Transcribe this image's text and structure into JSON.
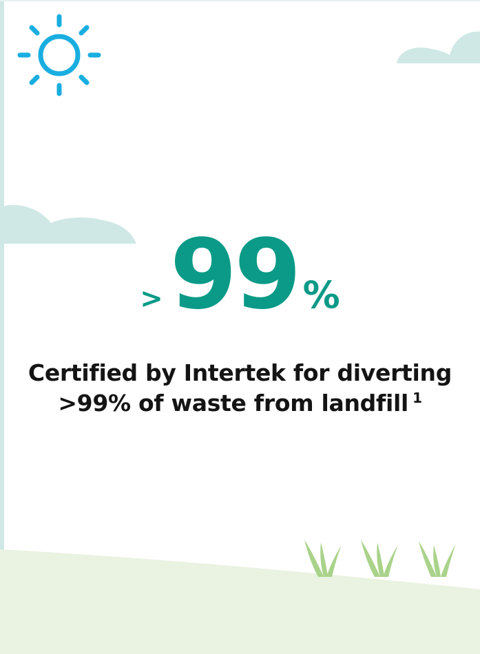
{
  "colors": {
    "accent": "#0a9a87",
    "sun": "#1aaee0",
    "cloud": "#cfe8e6",
    "hill": "#eaf2e1",
    "grass": "#a9d38a",
    "text": "#141414"
  },
  "icons": [
    "sun-icon",
    "cloud-icon",
    "grass-icon"
  ],
  "stat": {
    "prefix": ">",
    "number": "99",
    "suffix": "%"
  },
  "caption": {
    "line1": "Certified by Intertek for diverting",
    "line2": ">99% of waste from landfill",
    "footnote": "1"
  }
}
